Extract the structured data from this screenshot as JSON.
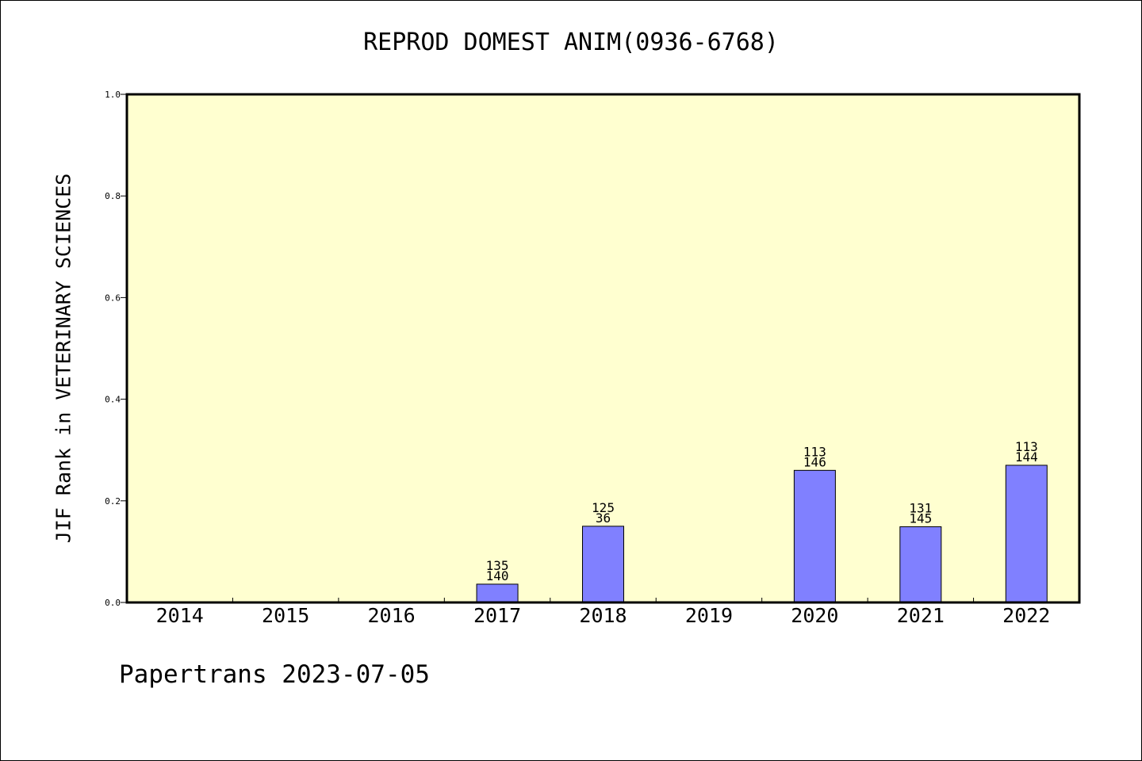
{
  "chart_data": {
    "type": "bar",
    "title": "REPROD DOMEST ANIM(0936-6768)",
    "ylabel": "JIF Rank in VETERINARY SCIENCES",
    "xlabel": "",
    "ylim": [
      0,
      1.0
    ],
    "yticks": [
      "0.0",
      "0.2",
      "0.4",
      "0.6",
      "0.8",
      "1.0"
    ],
    "categories": [
      "2014",
      "2015",
      "2016",
      "2017",
      "2018",
      "2019",
      "2020",
      "2021",
      "2022"
    ],
    "values": [
      null,
      null,
      null,
      0.036,
      0.15,
      null,
      0.26,
      0.149,
      0.27
    ],
    "labels": [
      null,
      null,
      null,
      [
        "135",
        "140"
      ],
      [
        "125",
        "36"
      ],
      null,
      [
        "113",
        "146"
      ],
      [
        "131",
        "145"
      ],
      [
        "113",
        "144"
      ]
    ],
    "grid": false
  },
  "footer": "Papertrans 2023-07-05",
  "colors": {
    "plot_background": "#ffffd0",
    "bar_fill": "#8080ff",
    "bar_stroke": "#000000"
  }
}
